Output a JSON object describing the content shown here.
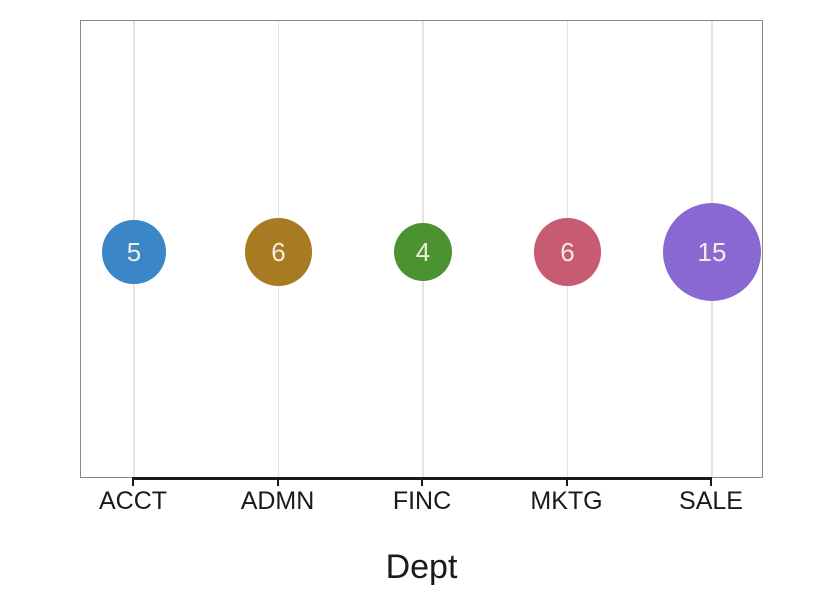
{
  "chart_data": {
    "type": "scatter",
    "subtype": "balloon-plot",
    "title": "",
    "xlabel": "Dept",
    "ylabel": "",
    "categories": [
      "ACCT",
      "ADMN",
      "FINC",
      "MKTG",
      "SALE"
    ],
    "values": [
      5,
      6,
      4,
      6,
      15
    ],
    "point_labels": [
      "5",
      "6",
      "4",
      "6",
      "15"
    ],
    "point_colors": [
      "#3B86C6",
      "#A87A21",
      "#4B9330",
      "#C65B72",
      "#8A68D1"
    ],
    "bubble_label_color": "#F2ECE1",
    "size_encoding": "circle area proportional to value",
    "grid": "vertical-only",
    "gridline_color": "#E8E3DC",
    "frame_color": "#8A8A8A",
    "axis_color": "#1A1A1A",
    "text_color": "#1A1A1A",
    "legend": "none",
    "background_color": "#FFFFFF"
  }
}
